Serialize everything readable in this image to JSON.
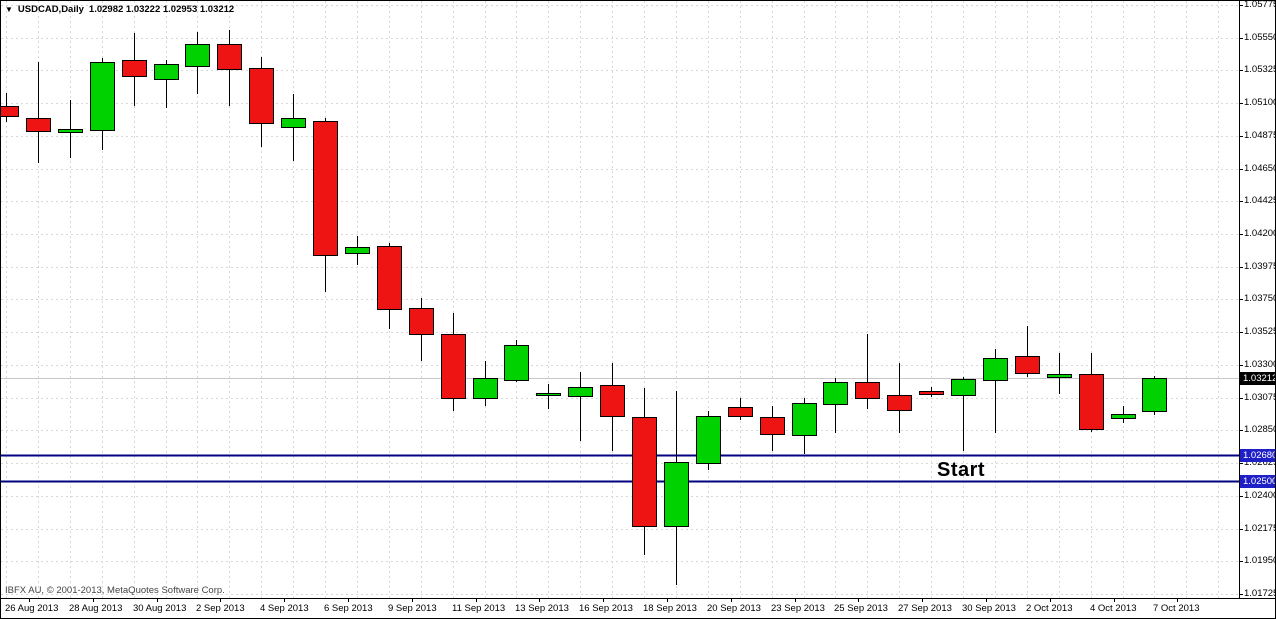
{
  "colors": {
    "background": "#FFFFFF",
    "grid": "#D8D8D8",
    "bull": "#00D200",
    "bear": "#EF1414",
    "outline": "#000000",
    "hline": "#000080",
    "hline_label_bg": "#1F1FC8",
    "current_label_bg": "#000000",
    "bid_line": "#C8C8C8",
    "axis_text": "#000000"
  },
  "info_bar": {
    "dropdown_icon": "▼",
    "symbol_period": "USDCAD,Daily",
    "ohlc_text": "1.02982 1.03222 1.02953 1.03212"
  },
  "copyright": "IBFX AU, © 2001-2013, MetaQuotes Software Corp.",
  "annotations": {
    "start_label": "Start",
    "hlines": [
      {
        "price": 1.0268,
        "label": "1.02680"
      },
      {
        "price": 1.025,
        "label": "1.02500"
      }
    ],
    "current_price": {
      "price": 1.03212,
      "label": "1.03212"
    }
  },
  "chart_data": {
    "type": "candlestick",
    "symbol": "USDCAD",
    "timeframe": "Daily",
    "title": "USDCAD,Daily",
    "grid": true,
    "y_axis": {
      "min": 1.01725,
      "max": 1.05775,
      "tick_step": 0.00225,
      "ticks": [
        "1.05775",
        "1.05550",
        "1.05325",
        "1.05100",
        "1.04875",
        "1.04650",
        "1.04425",
        "1.04200",
        "1.03975",
        "1.03750",
        "1.03525",
        "1.03300",
        "1.03075",
        "1.02850",
        "1.02625",
        "1.02400",
        "1.02175",
        "1.01950",
        "1.01725"
      ]
    },
    "x_axis": {
      "tick_labels": [
        {
          "bar": 0,
          "label": "26 Aug 2013"
        },
        {
          "bar": 2,
          "label": "28 Aug 2013"
        },
        {
          "bar": 4,
          "label": "30 Aug 2013"
        },
        {
          "bar": 6,
          "label": "2 Sep 2013"
        },
        {
          "bar": 8,
          "label": "4 Sep 2013"
        },
        {
          "bar": 10,
          "label": "6 Sep 2013"
        },
        {
          "bar": 12,
          "label": "9 Sep 2013"
        },
        {
          "bar": 14,
          "label": "11 Sep 2013"
        },
        {
          "bar": 16,
          "label": "13 Sep 2013"
        },
        {
          "bar": 18,
          "label": "16 Sep 2013"
        },
        {
          "bar": 20,
          "label": "18 Sep 2013"
        },
        {
          "bar": 22,
          "label": "20 Sep 2013"
        },
        {
          "bar": 24,
          "label": "23 Sep 2013"
        },
        {
          "bar": 26,
          "label": "25 Sep 2013"
        },
        {
          "bar": 28,
          "label": "27 Sep 2013"
        },
        {
          "bar": 30,
          "label": "30 Sep 2013"
        },
        {
          "bar": 32,
          "label": "2 Oct 2013"
        },
        {
          "bar": 34,
          "label": "4 Oct 2013"
        },
        {
          "bar": 36,
          "label": "7 Oct 2013"
        }
      ]
    },
    "candles": [
      {
        "date": "26 Aug 2013",
        "o": 1.0508,
        "h": 1.0517,
        "l": 1.0497,
        "c": 1.0501
      },
      {
        "date": "27 Aug 2013",
        "o": 1.05,
        "h": 1.0538,
        "l": 1.0469,
        "c": 1.0491
      },
      {
        "date": "28 Aug 2013",
        "o": 1.049,
        "h": 1.0512,
        "l": 1.0472,
        "c": 1.0492
      },
      {
        "date": "29 Aug 2013",
        "o": 1.0491,
        "h": 1.0541,
        "l": 1.0478,
        "c": 1.0538
      },
      {
        "date": "30 Aug 2013",
        "o": 1.054,
        "h": 1.0558,
        "l": 1.0508,
        "c": 1.0529
      },
      {
        "date": "1 Sep 2013",
        "o": 1.0527,
        "h": 1.054,
        "l": 1.0507,
        "c": 1.0537
      },
      {
        "date": "2 Sep 2013",
        "o": 1.0536,
        "h": 1.0559,
        "l": 1.0516,
        "c": 1.0551
      },
      {
        "date": "3 Sep 2013",
        "o": 1.0551,
        "h": 1.056,
        "l": 1.0508,
        "c": 1.0534
      },
      {
        "date": "4 Sep 2013",
        "o": 1.0534,
        "h": 1.0542,
        "l": 1.048,
        "c": 1.0496
      },
      {
        "date": "5 Sep 2013",
        "o": 1.0494,
        "h": 1.0516,
        "l": 1.047,
        "c": 1.05
      },
      {
        "date": "6 Sep 2013",
        "o": 1.0498,
        "h": 1.05,
        "l": 1.038,
        "c": 1.0406
      },
      {
        "date": "8 Sep 2013",
        "o": 1.0407,
        "h": 1.0419,
        "l": 1.0399,
        "c": 1.0411
      },
      {
        "date": "9 Sep 2013",
        "o": 1.0412,
        "h": 1.0414,
        "l": 1.0355,
        "c": 1.0369
      },
      {
        "date": "10 Sep 2013",
        "o": 1.0369,
        "h": 1.0376,
        "l": 1.0333,
        "c": 1.0351
      },
      {
        "date": "11 Sep 2013",
        "o": 1.0351,
        "h": 1.0366,
        "l": 1.0298,
        "c": 1.0307
      },
      {
        "date": "12 Sep 2013",
        "o": 1.0307,
        "h": 1.0333,
        "l": 1.0302,
        "c": 1.0321
      },
      {
        "date": "13 Sep 2013",
        "o": 1.032,
        "h": 1.0347,
        "l": 1.0318,
        "c": 1.0344
      },
      {
        "date": "15 Sep 2013",
        "o": 1.031,
        "h": 1.0317,
        "l": 1.03,
        "c": 1.0311
      },
      {
        "date": "16 Sep 2013",
        "o": 1.0309,
        "h": 1.0325,
        "l": 1.0278,
        "c": 1.0315
      },
      {
        "date": "17 Sep 2013",
        "o": 1.0316,
        "h": 1.0331,
        "l": 1.0271,
        "c": 1.0295
      },
      {
        "date": "18 Sep 2013",
        "o": 1.0294,
        "h": 1.0314,
        "l": 1.0199,
        "c": 1.0219
      },
      {
        "date": "19 Sep 2013",
        "o": 1.0219,
        "h": 1.0312,
        "l": 1.0179,
        "c": 1.0263
      },
      {
        "date": "20 Sep 2013",
        "o": 1.0263,
        "h": 1.0298,
        "l": 1.0258,
        "c": 1.0295
      },
      {
        "date": "22 Sep 2013",
        "o": 1.0301,
        "h": 1.0307,
        "l": 1.0292,
        "c": 1.0295
      },
      {
        "date": "23 Sep 2013",
        "o": 1.0294,
        "h": 1.0302,
        "l": 1.0271,
        "c": 1.0282
      },
      {
        "date": "24 Sep 2013",
        "o": 1.0282,
        "h": 1.0307,
        "l": 1.0269,
        "c": 1.0304
      },
      {
        "date": "25 Sep 2013",
        "o": 1.0303,
        "h": 1.0321,
        "l": 1.0283,
        "c": 1.0318
      },
      {
        "date": "26 Sep 2013",
        "o": 1.0318,
        "h": 1.0351,
        "l": 1.03,
        "c": 1.0307
      },
      {
        "date": "27 Sep 2013",
        "o": 1.0309,
        "h": 1.0331,
        "l": 1.0283,
        "c": 1.0299
      },
      {
        "date": "29 Sep 2013",
        "o": 1.0312,
        "h": 1.0315,
        "l": 1.0308,
        "c": 1.031
      },
      {
        "date": "30 Sep 2013",
        "o": 1.0309,
        "h": 1.0322,
        "l": 1.0271,
        "c": 1.032
      },
      {
        "date": "1 Oct 2013",
        "o": 1.032,
        "h": 1.0341,
        "l": 1.0283,
        "c": 1.0335
      },
      {
        "date": "2 Oct 2013",
        "o": 1.0336,
        "h": 1.0357,
        "l": 1.0322,
        "c": 1.0324
      },
      {
        "date": "3 Oct 2013",
        "o": 1.0322,
        "h": 1.0338,
        "l": 1.031,
        "c": 1.0324
      },
      {
        "date": "4 Oct 2013",
        "o": 1.0324,
        "h": 1.0338,
        "l": 1.0284,
        "c": 1.0286
      },
      {
        "date": "6 Oct 2013",
        "o": 1.0293,
        "h": 1.0302,
        "l": 1.029,
        "c": 1.0296
      },
      {
        "date": "7 Oct 2013",
        "o": 1.02982,
        "h": 1.03222,
        "l": 1.02953,
        "c": 1.03212
      }
    ]
  }
}
